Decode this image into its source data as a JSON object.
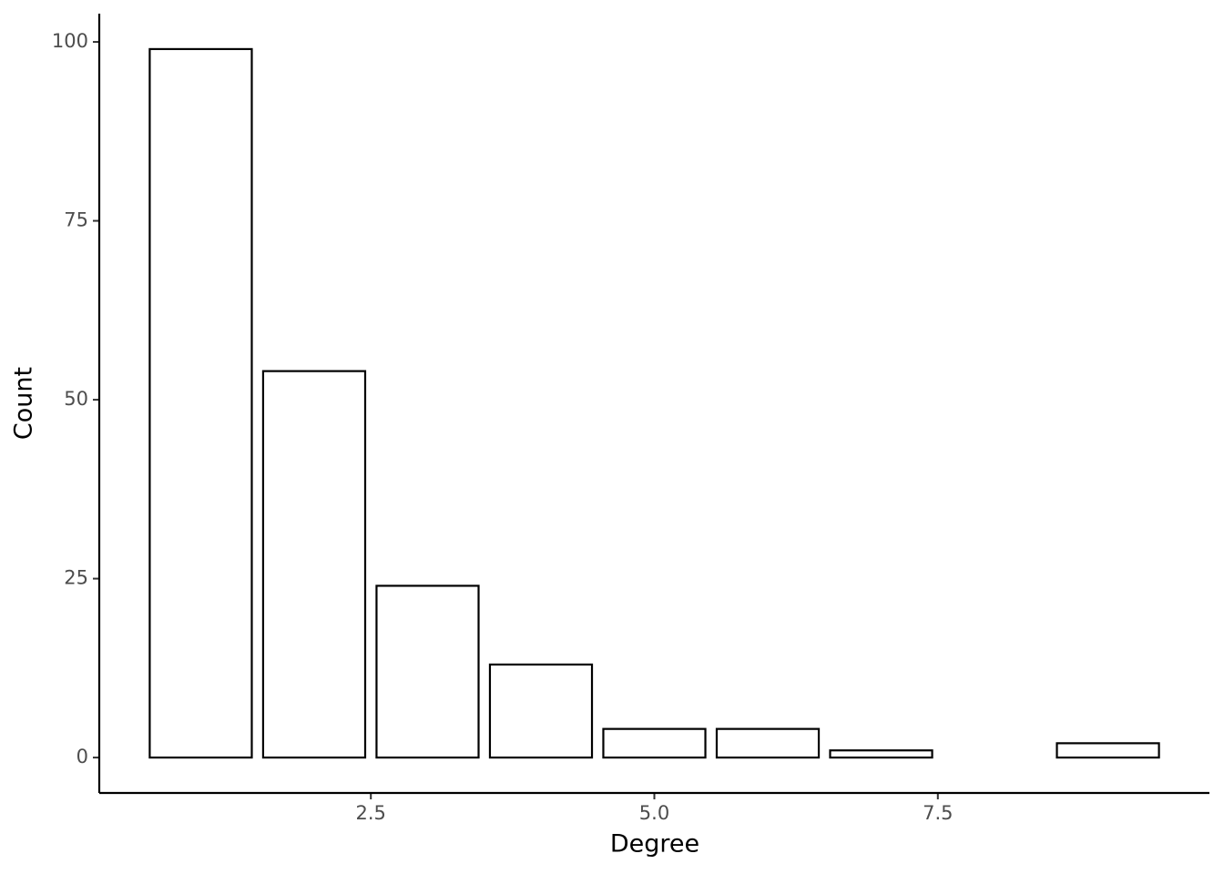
{
  "chart_data": {
    "type": "bar",
    "x_label": "Degree",
    "y_label": "Count",
    "x": [
      1,
      2,
      3,
      4,
      5,
      6,
      7,
      9
    ],
    "values": [
      99,
      54,
      24,
      13,
      4,
      4,
      1,
      2
    ],
    "color": "#ffffff",
    "edgecolor": "#000000",
    "xlim": [
      0.105,
      9.895
    ],
    "xticks": [
      2.5,
      {
        "value": 5,
        "label": "5.0"
      },
      7.5
    ],
    "ylim": [
      -4.95,
      103.95
    ],
    "yticks": [
      0,
      25,
      50,
      75,
      100
    ],
    "grid": false
  }
}
